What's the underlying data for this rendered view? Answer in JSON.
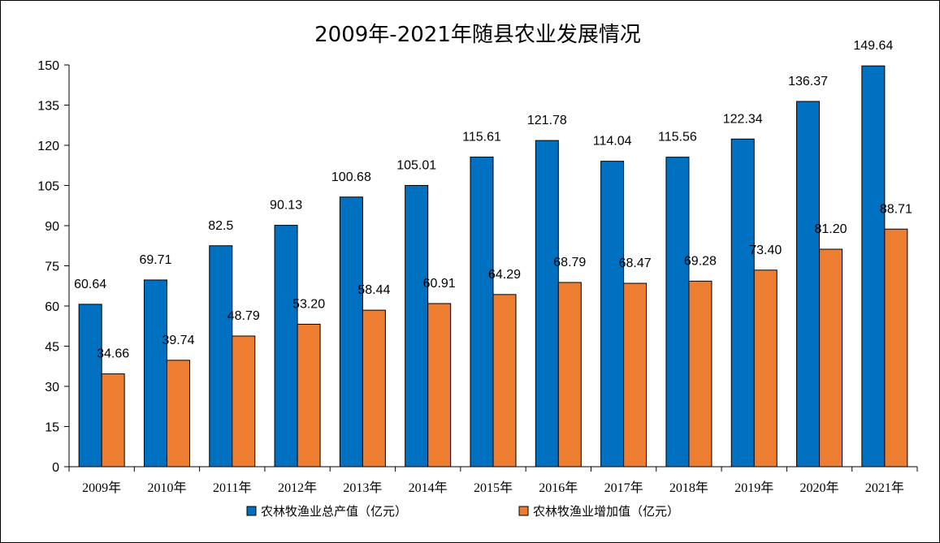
{
  "chart_data": {
    "type": "bar",
    "title": "2009年-2021年随县农业发展情况",
    "categories": [
      "2009年",
      "2010年",
      "2011年",
      "2012年",
      "2013年",
      "2014年",
      "2015年",
      "2016年",
      "2017年",
      "2018年",
      "2019年",
      "2020年",
      "2021年"
    ],
    "series": [
      {
        "name": "农林牧渔业总产值（亿元）",
        "color": "#0070c0",
        "values": [
          60.64,
          69.71,
          82.5,
          90.13,
          100.68,
          105.01,
          115.61,
          121.78,
          114.04,
          115.56,
          122.34,
          136.37,
          149.64
        ],
        "labels": [
          "60.64",
          "69.71",
          "82.5",
          "90.13",
          "100.68",
          "105.01",
          "115.61",
          "121.78",
          "114.04",
          "115.56",
          "122.34",
          "136.37",
          "149.64"
        ]
      },
      {
        "name": "农林牧渔业增加值（亿元）",
        "color": "#ed7d31",
        "values": [
          34.66,
          39.74,
          48.79,
          53.2,
          58.44,
          60.91,
          64.29,
          68.79,
          68.47,
          69.28,
          73.4,
          81.2,
          88.71
        ],
        "labels": [
          "34.66",
          "39.74",
          "48.79",
          "53.20",
          "58.44",
          "60.91",
          "64.29",
          "68.79",
          "68.47",
          "69.28",
          "73.40",
          "81.20",
          "88.71"
        ]
      }
    ],
    "ylim": [
      0,
      150
    ],
    "yticks": [
      "0",
      "15",
      "30",
      "45",
      "60",
      "75",
      "90",
      "105",
      "120",
      "135",
      "150"
    ],
    "grid": false,
    "legend_position": "bottom"
  }
}
